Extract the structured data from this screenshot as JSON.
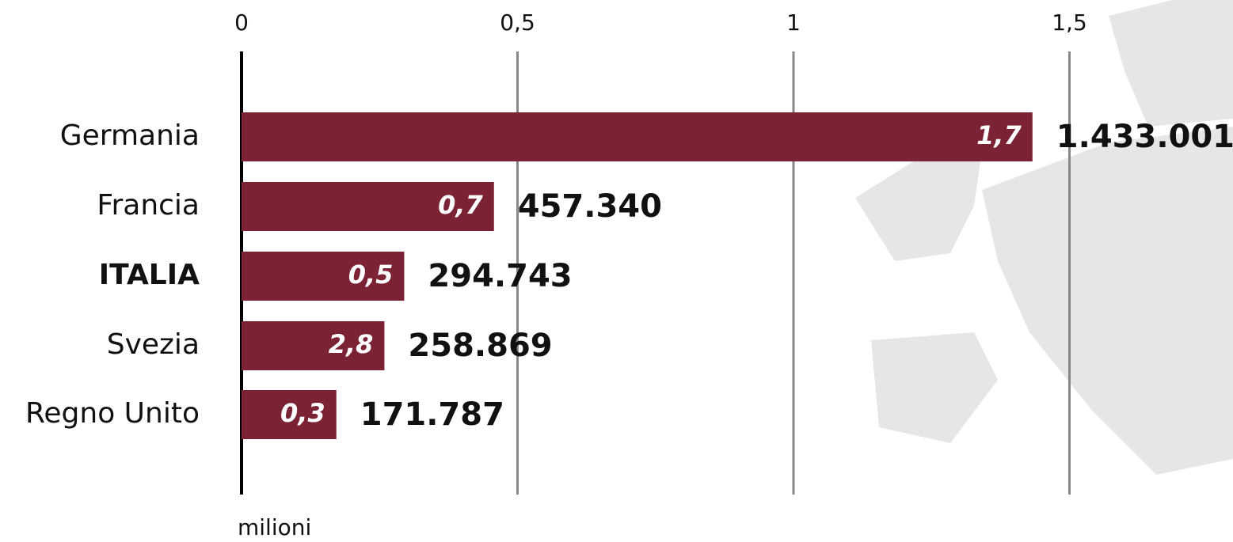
{
  "chart_data": {
    "type": "hbar",
    "categories": [
      "Germania",
      "Francia",
      "ITALIA",
      "Svezia",
      "Regno Unito"
    ],
    "values": [
      1.433001,
      0.45734,
      0.294743,
      0.258869,
      0.171787
    ],
    "value_labels": [
      "1.433.001",
      "457.340",
      "294.743",
      "258.869",
      "171.787"
    ],
    "inner_values": [
      1.7,
      0.7,
      0.5,
      2.8,
      0.3
    ],
    "inner_value_labels": [
      "1,7",
      "0,7",
      "0,5",
      "2,8",
      "0,3"
    ],
    "highlight": 2,
    "color": "#7b2234",
    "xlabel": "milioni",
    "xlim": [
      0,
      1.8
    ],
    "xticks": [
      0,
      {
        "value": 0.5,
        "label": "0,5"
      },
      1,
      {
        "value": 1.5,
        "label": "1,5"
      }
    ],
    "grid": true
  }
}
